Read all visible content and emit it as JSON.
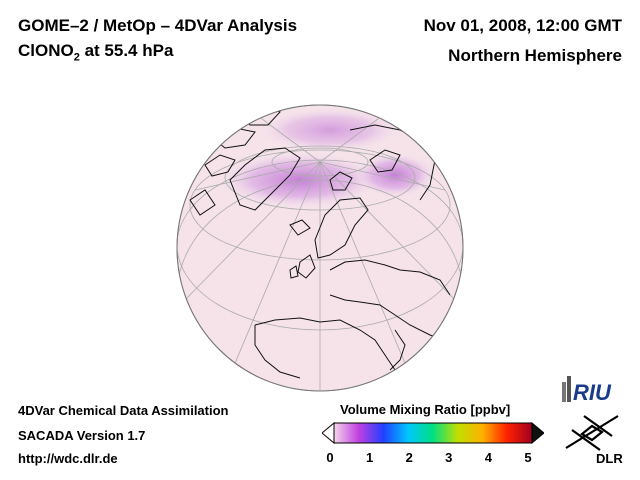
{
  "header": {
    "title_line1": "GOME–2 / MetOp – 4DVar Analysis",
    "species_main": "ClONO",
    "species_sub": "2",
    "species_rest": " at 55.4 hPa",
    "datetime": "Nov 01, 2008, 12:00 GMT",
    "region": "Northern Hemisphere"
  },
  "footer": {
    "line1": "4DVar Chemical Data Assimilation",
    "line2": "SACADA Version 1.7",
    "line3": "http://wdc.dlr.de"
  },
  "colorbar": {
    "title": "Volume Mixing Ratio [ppbv]",
    "ticks": [
      "0",
      "1",
      "2",
      "3",
      "4",
      "5"
    ],
    "range": [
      0,
      5
    ],
    "colors": [
      "#f4d6ec",
      "#c040e0",
      "#2040ff",
      "#00c8ff",
      "#00e080",
      "#c0e000",
      "#ffb000",
      "#ff2000",
      "#a00020"
    ]
  },
  "logos": {
    "riu": "RIU",
    "dlr": "DLR"
  },
  "map": {
    "projection": "orthographic",
    "field_background": "#f4e2e8",
    "high_region_color": "#cc88dd"
  }
}
